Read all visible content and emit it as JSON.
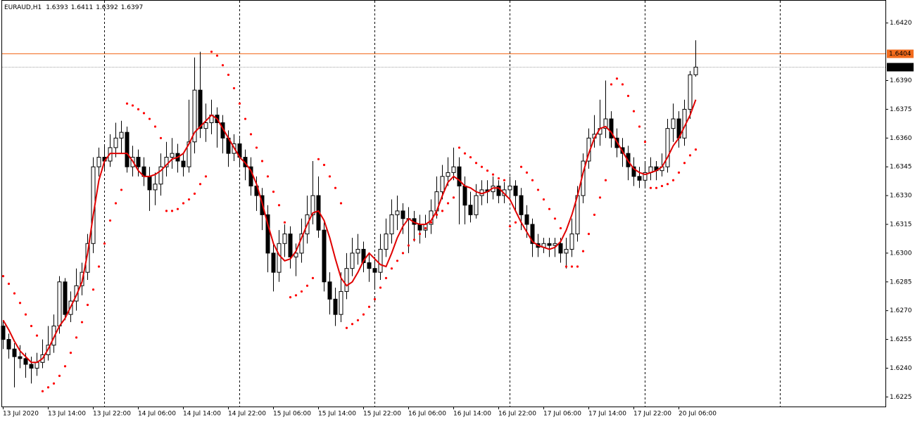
{
  "chart_data": {
    "type": "candlestick",
    "title": "EURAUD,H1",
    "up_color": "#ffffff",
    "down_color": "#000000",
    "wick_color": "#000000",
    "categories": [
      "13 Jul 2020",
      null,
      null,
      null,
      null,
      null,
      null,
      null,
      "13 Jul 14:00",
      null,
      null,
      null,
      null,
      null,
      null,
      null,
      "13 Jul 22:00",
      null,
      null,
      null,
      null,
      null,
      null,
      null,
      "14 Jul 06:00",
      null,
      null,
      null,
      null,
      null,
      null,
      null,
      "14 Jul 14:00",
      null,
      null,
      null,
      null,
      null,
      null,
      null,
      "14 Jul 22:00",
      null,
      null,
      null,
      null,
      null,
      null,
      null,
      "15 Jul 06:00",
      null,
      null,
      null,
      null,
      null,
      null,
      null,
      "15 Jul 14:00",
      null,
      null,
      null,
      null,
      null,
      null,
      null,
      "15 Jul 22:00",
      null,
      null,
      null,
      null,
      null,
      null,
      null,
      "16 Jul 06:00",
      null,
      null,
      null,
      null,
      null,
      null,
      null,
      "16 Jul 14:00",
      null,
      null,
      null,
      null,
      null,
      null,
      null,
      "16 Jul 22:00",
      null,
      null,
      null,
      null,
      null,
      null,
      null,
      "17 Jul 06:00",
      null,
      null,
      null,
      null,
      null,
      null,
      null,
      "17 Jul 14:00",
      null,
      null,
      null,
      null,
      null,
      null,
      null,
      "17 Jul 22:00",
      null,
      null,
      null,
      null,
      null,
      null,
      null,
      "20 Jul 06:00",
      null,
      null,
      null
    ],
    "open": [
      1.6262,
      1.6255,
      1.625,
      1.6246,
      1.6245,
      1.6242,
      1.624,
      1.6243,
      1.6247,
      1.6252,
      1.6262,
      1.6285,
      1.6268,
      1.6275,
      1.6283,
      1.629,
      1.6305,
      1.6345,
      1.635,
      1.6348,
      1.6355,
      1.636,
      1.6363,
      1.6345,
      1.635,
      1.6345,
      1.634,
      1.6333,
      1.6336,
      1.6345,
      1.635,
      1.6352,
      1.6348,
      1.6345,
      1.6358,
      1.6385,
      1.6365,
      1.6368,
      1.6372,
      1.6368,
      1.636,
      1.6352,
      1.6357,
      1.635,
      1.6345,
      1.6335,
      1.633,
      1.632,
      1.63,
      1.629,
      1.6305,
      1.631,
      1.6298,
      1.63,
      1.631,
      1.632,
      1.633,
      1.6312,
      1.6285,
      1.6276,
      1.6268,
      1.628,
      1.6292,
      1.63,
      1.6302,
      1.6295,
      1.6292,
      1.629,
      1.6302,
      1.631,
      1.632,
      1.6322,
      1.6318,
      1.6318,
      1.6315,
      1.6312,
      1.6315,
      1.6322,
      1.6332,
      1.634,
      1.6342,
      1.6345,
      1.6335,
      1.6325,
      1.632,
      1.633,
      1.6333,
      1.6332,
      1.6335,
      1.633,
      1.6333,
      1.6335,
      1.633,
      1.632,
      1.6315,
      1.6305,
      1.6303,
      1.6305,
      1.6304,
      1.6305,
      1.63,
      1.6302,
      1.631,
      1.633,
      1.6348,
      1.636,
      1.6362,
      1.6365,
      1.637,
      1.636,
      1.6355,
      1.6352,
      1.6345,
      1.634,
      1.6338,
      1.6342,
      1.6345,
      1.6343,
      1.6345,
      1.6365,
      1.637,
      1.636,
      1.6375,
      1.6393
    ],
    "high": [
      1.6265,
      1.6258,
      1.6253,
      1.6252,
      1.6248,
      1.6246,
      1.6248,
      1.6255,
      1.6262,
      1.6268,
      1.6288,
      1.6287,
      1.628,
      1.6292,
      1.6295,
      1.631,
      1.635,
      1.6355,
      1.6356,
      1.6362,
      1.6368,
      1.6369,
      1.6366,
      1.6356,
      1.6354,
      1.635,
      1.6345,
      1.6342,
      1.6352,
      1.6358,
      1.636,
      1.6357,
      1.6352,
      1.638,
      1.6402,
      1.6405,
      1.6378,
      1.638,
      1.6376,
      1.6372,
      1.6364,
      1.6362,
      1.636,
      1.6354,
      1.635,
      1.634,
      1.6334,
      1.6325,
      1.6305,
      1.6312,
      1.6315,
      1.6314,
      1.6305,
      1.6318,
      1.633,
      1.6348,
      1.634,
      1.6316,
      1.629,
      1.6282,
      1.629,
      1.63,
      1.6308,
      1.631,
      1.6306,
      1.63,
      1.6298,
      1.631,
      1.6318,
      1.6328,
      1.633,
      1.6326,
      1.6324,
      1.6322,
      1.632,
      1.632,
      1.6328,
      1.634,
      1.6346,
      1.635,
      1.6355,
      1.635,
      1.634,
      1.6332,
      1.6336,
      1.6338,
      1.6338,
      1.634,
      1.6338,
      1.6337,
      1.634,
      1.6338,
      1.6334,
      1.6325,
      1.6318,
      1.631,
      1.6308,
      1.6308,
      1.6308,
      1.6308,
      1.6308,
      1.6318,
      1.6335,
      1.6352,
      1.6365,
      1.6372,
      1.638,
      1.639,
      1.6374,
      1.6365,
      1.636,
      1.6356,
      1.635,
      1.6345,
      1.6348,
      1.635,
      1.6348,
      1.6352,
      1.637,
      1.6378,
      1.6374,
      1.638,
      1.6395,
      1.6411
    ],
    "low": [
      1.625,
      1.6245,
      1.623,
      1.624,
      1.6235,
      1.6232,
      1.6236,
      1.624,
      1.6244,
      1.6248,
      1.6258,
      1.6265,
      1.6264,
      1.627,
      1.6278,
      1.6286,
      1.63,
      1.634,
      1.6343,
      1.6345,
      1.635,
      1.6352,
      1.6342,
      1.634,
      1.634,
      1.6335,
      1.6322,
      1.6325,
      1.633,
      1.634,
      1.6344,
      1.6342,
      1.634,
      1.6342,
      1.6352,
      1.636,
      1.6358,
      1.6362,
      1.6355,
      1.6352,
      1.6345,
      1.6348,
      1.6345,
      1.6338,
      1.633,
      1.6322,
      1.6312,
      1.629,
      1.628,
      1.6285,
      1.6298,
      1.6292,
      1.6288,
      1.6295,
      1.6305,
      1.6315,
      1.6308,
      1.628,
      1.6268,
      1.6262,
      1.6264,
      1.6276,
      1.6288,
      1.6294,
      1.629,
      1.6285,
      1.6282,
      1.6286,
      1.6298,
      1.6305,
      1.6312,
      1.631,
      1.63,
      1.6306,
      1.6305,
      1.6308,
      1.631,
      1.6318,
      1.6328,
      1.6335,
      1.6338,
      1.6315,
      1.6315,
      1.6316,
      1.6318,
      1.6325,
      1.6326,
      1.6328,
      1.6326,
      1.6326,
      1.6328,
      1.6322,
      1.6312,
      1.6308,
      1.6298,
      1.6298,
      1.63,
      1.6298,
      1.6298,
      1.6295,
      1.6292,
      1.6298,
      1.6306,
      1.6326,
      1.6344,
      1.6355,
      1.6356,
      1.636,
      1.6355,
      1.635,
      1.6345,
      1.6338,
      1.6335,
      1.6334,
      1.6334,
      1.6338,
      1.6338,
      1.634,
      1.6342,
      1.6358,
      1.6355,
      1.6356,
      1.637,
      1.6392
    ],
    "close": [
      1.6255,
      1.625,
      1.6246,
      1.6245,
      1.6242,
      1.624,
      1.6243,
      1.6247,
      1.6252,
      1.6262,
      1.6285,
      1.6268,
      1.6275,
      1.6283,
      1.629,
      1.6305,
      1.6345,
      1.635,
      1.6348,
      1.6355,
      1.636,
      1.6363,
      1.6345,
      1.635,
      1.6345,
      1.634,
      1.6333,
      1.6336,
      1.6345,
      1.635,
      1.6352,
      1.6348,
      1.6345,
      1.6358,
      1.6385,
      1.6365,
      1.6368,
      1.6372,
      1.6368,
      1.636,
      1.6352,
      1.6357,
      1.635,
      1.6345,
      1.6335,
      1.633,
      1.632,
      1.63,
      1.629,
      1.6305,
      1.631,
      1.6298,
      1.63,
      1.631,
      1.632,
      1.633,
      1.6312,
      1.6285,
      1.6276,
      1.6268,
      1.628,
      1.6292,
      1.63,
      1.6302,
      1.6295,
      1.6292,
      1.629,
      1.6302,
      1.631,
      1.632,
      1.6322,
      1.6318,
      1.6318,
      1.6315,
      1.6312,
      1.6315,
      1.6322,
      1.6332,
      1.634,
      1.6342,
      1.6345,
      1.6335,
      1.6325,
      1.632,
      1.633,
      1.6333,
      1.6332,
      1.6335,
      1.633,
      1.6333,
      1.6335,
      1.633,
      1.632,
      1.6315,
      1.6305,
      1.6303,
      1.6305,
      1.6304,
      1.6305,
      1.63,
      1.6302,
      1.631,
      1.633,
      1.6348,
      1.636,
      1.6362,
      1.6365,
      1.637,
      1.636,
      1.6355,
      1.6352,
      1.6345,
      1.634,
      1.6338,
      1.6342,
      1.6345,
      1.6343,
      1.6345,
      1.6365,
      1.637,
      1.636,
      1.6375,
      1.6393,
      1.6397
    ],
    "ma": {
      "color": "#e00000",
      "values": [
        1.6265,
        1.626,
        1.6254,
        1.6249,
        1.6246,
        1.6243,
        1.6243,
        1.6245,
        1.625,
        1.6256,
        1.6262,
        1.6266,
        1.6272,
        1.6278,
        1.6285,
        1.63,
        1.632,
        1.6338,
        1.6348,
        1.6352,
        1.6352,
        1.6352,
        1.6352,
        1.6348,
        1.6343,
        1.634,
        1.634,
        1.6341,
        1.6343,
        1.6346,
        1.6349,
        1.635,
        1.6352,
        1.6357,
        1.6363,
        1.6366,
        1.6369,
        1.6372,
        1.637,
        1.6365,
        1.636,
        1.6355,
        1.635,
        1.6347,
        1.6343,
        1.6336,
        1.6326,
        1.6315,
        1.6305,
        1.6299,
        1.6296,
        1.6297,
        1.6301,
        1.6308,
        1.6315,
        1.6321,
        1.6322,
        1.6317,
        1.6308,
        1.6297,
        1.6287,
        1.6283,
        1.6285,
        1.629,
        1.6296,
        1.63,
        1.6297,
        1.6294,
        1.6293,
        1.63,
        1.6308,
        1.6314,
        1.6318,
        1.6316,
        1.6315,
        1.6315,
        1.6317,
        1.6322,
        1.633,
        1.6337,
        1.634,
        1.6338,
        1.6335,
        1.6334,
        1.6332,
        1.6331,
        1.6332,
        1.6334,
        1.6334,
        1.6331,
        1.6328,
        1.6322,
        1.6316,
        1.6311,
        1.6306,
        1.6304,
        1.6303,
        1.6302,
        1.6303,
        1.6306,
        1.6312,
        1.632,
        1.633,
        1.6342,
        1.6352,
        1.636,
        1.6365,
        1.6366,
        1.6363,
        1.6358,
        1.6353,
        1.6348,
        1.6344,
        1.6342,
        1.6341,
        1.6342,
        1.6343,
        1.6345,
        1.635,
        1.6356,
        1.636,
        1.6366,
        1.6372,
        1.638
      ]
    },
    "psar": {
      "color": "#ff0000",
      "values": [
        1.6288,
        1.6284,
        1.6279,
        1.6274,
        1.6268,
        1.6262,
        1.6257,
        1.6228,
        1.623,
        1.6232,
        1.6236,
        1.6241,
        1.6248,
        1.6256,
        1.6264,
        1.6273,
        1.6281,
        1.6293,
        1.6305,
        1.6317,
        1.6326,
        1.6333,
        1.6378,
        1.6377,
        1.6375,
        1.6373,
        1.637,
        1.6366,
        1.636,
        1.6322,
        1.6322,
        1.6323,
        1.6326,
        1.6328,
        1.6331,
        1.6336,
        1.634,
        1.6405,
        1.6403,
        1.6398,
        1.6393,
        1.6386,
        1.6378,
        1.637,
        1.6362,
        1.6355,
        1.6348,
        1.634,
        1.6332,
        1.6325,
        1.6316,
        1.6277,
        1.6278,
        1.628,
        1.6283,
        1.6287,
        1.6349,
        1.6346,
        1.634,
        1.6334,
        1.6326,
        1.6261,
        1.6263,
        1.6265,
        1.6268,
        1.6272,
        1.6276,
        1.6282,
        1.6287,
        1.6292,
        1.6296,
        1.63,
        1.6304,
        1.6307,
        1.631,
        1.6313,
        1.6316,
        1.632,
        1.6322,
        1.6326,
        1.6329,
        1.6355,
        1.6352,
        1.635,
        1.6347,
        1.6345,
        1.6343,
        1.6341,
        1.6339,
        1.6338,
        1.6314,
        1.6316,
        1.6345,
        1.6342,
        1.6338,
        1.6333,
        1.6328,
        1.6323,
        1.6318,
        1.6313,
        1.6293,
        1.6293,
        1.6293,
        1.6301,
        1.631,
        1.632,
        1.6329,
        1.6338,
        1.6388,
        1.6391,
        1.6388,
        1.6382,
        1.6374,
        1.6366,
        1.6358,
        1.6334,
        1.6334,
        1.6335,
        1.6336,
        1.6338,
        1.6342,
        1.6347,
        1.6351,
        1.6354
      ]
    },
    "price_lines": [
      {
        "value": 1.6404,
        "color": "#f26b1d",
        "style": "solid",
        "label_color": "#f26b1d"
      },
      {
        "value": 1.6397,
        "color": "#a0a0a0",
        "style": "dotted",
        "label_color": "#000000"
      }
    ],
    "ylim": [
      1.622,
      1.6432
    ],
    "yticks": [
      1.6225,
      {
        "value": 1.624,
        "label": "1.6240"
      },
      1.6255,
      {
        "value": 1.627,
        "label": "1.6270"
      },
      1.6285,
      {
        "value": 1.63,
        "label": "1.6300"
      },
      1.6315,
      {
        "value": 1.633,
        "label": "1.6330"
      },
      1.6345,
      {
        "value": 1.636,
        "label": "1.6360"
      },
      1.6375,
      {
        "value": 1.639,
        "label": "1.6390"
      },
      {
        "value": 1.642,
        "label": "1.6420"
      }
    ]
  }
}
